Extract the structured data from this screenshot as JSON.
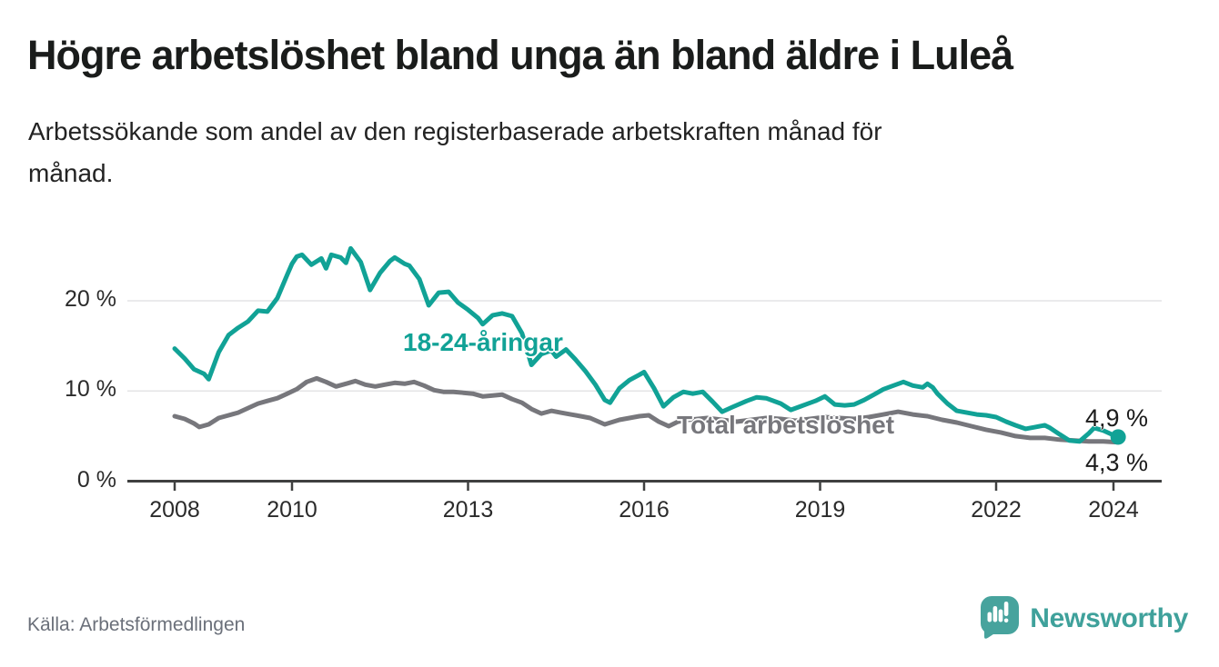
{
  "header": {
    "title": "Högre arbetslöshet bland unga än bland äldre i Luleå",
    "subtitle_lines": [
      "Arbetssökande som andel av den registerbaserade arbetskraften månad för",
      "månad."
    ]
  },
  "chart_data": {
    "type": "line",
    "title": "Högre arbetslöshet bland unga än bland äldre i Luleå",
    "unit": "%",
    "grid": "horizontal",
    "legend_position": "inline-labels",
    "ylim": [
      0,
      27
    ],
    "xlim": [
      2007.2,
      2024.85
    ],
    "y_ticks": [
      {
        "value": 0,
        "label": "0 %"
      },
      {
        "value": 10,
        "label": "10 %"
      },
      {
        "value": 20,
        "label": "20 %"
      }
    ],
    "x_ticks": [
      {
        "value": 2008,
        "label": "2008"
      },
      {
        "value": 2010,
        "label": "2010"
      },
      {
        "value": 2013,
        "label": "2013"
      },
      {
        "value": 2016,
        "label": "2016"
      },
      {
        "value": 2019,
        "label": "2019"
      },
      {
        "value": 2022,
        "label": "2022"
      },
      {
        "value": 2024,
        "label": "2024"
      }
    ],
    "series": [
      {
        "name": "18-24-åringar",
        "color": "#11a296",
        "end_label": "4,9 %",
        "end_value": 4.9,
        "end_dot": true,
        "points": [
          [
            2008,
            14.7
          ],
          [
            2008.17,
            13.6
          ],
          [
            2008.33,
            12.4
          ],
          [
            2008.5,
            11.9
          ],
          [
            2008.58,
            11.3
          ],
          [
            2008.75,
            14.3
          ],
          [
            2008.92,
            16.2
          ],
          [
            2009.08,
            17
          ],
          [
            2009.25,
            17.7
          ],
          [
            2009.42,
            18.9
          ],
          [
            2009.58,
            18.8
          ],
          [
            2009.75,
            20.3
          ],
          [
            2009.92,
            22.9
          ],
          [
            2010,
            24.1
          ],
          [
            2010.08,
            24.9
          ],
          [
            2010.17,
            25.1
          ],
          [
            2010.33,
            24
          ],
          [
            2010.5,
            24.7
          ],
          [
            2010.58,
            23.6
          ],
          [
            2010.67,
            25.1
          ],
          [
            2010.83,
            24.8
          ],
          [
            2010.92,
            24.2
          ],
          [
            2011,
            25.8
          ],
          [
            2011.17,
            24.3
          ],
          [
            2011.33,
            21.2
          ],
          [
            2011.5,
            23.1
          ],
          [
            2011.67,
            24.4
          ],
          [
            2011.75,
            24.8
          ],
          [
            2011.92,
            24.1
          ],
          [
            2012,
            23.9
          ],
          [
            2012.17,
            22.4
          ],
          [
            2012.33,
            19.5
          ],
          [
            2012.5,
            20.9
          ],
          [
            2012.67,
            21
          ],
          [
            2012.83,
            19.8
          ],
          [
            2013,
            19
          ],
          [
            2013.17,
            18.1
          ],
          [
            2013.25,
            17.4
          ],
          [
            2013.42,
            18.4
          ],
          [
            2013.58,
            18.6
          ],
          [
            2013.75,
            18.3
          ],
          [
            2013.92,
            16.4
          ],
          [
            2014.08,
            12.9
          ],
          [
            2014.25,
            14.1
          ],
          [
            2014.42,
            14.5
          ],
          [
            2014.5,
            13.8
          ],
          [
            2014.67,
            14.6
          ],
          [
            2014.83,
            13.5
          ],
          [
            2015,
            12.2
          ],
          [
            2015.17,
            10.7
          ],
          [
            2015.33,
            9
          ],
          [
            2015.42,
            8.7
          ],
          [
            2015.58,
            10.3
          ],
          [
            2015.75,
            11.2
          ],
          [
            2015.92,
            11.8
          ],
          [
            2016,
            12.1
          ],
          [
            2016.17,
            10.3
          ],
          [
            2016.33,
            8.3
          ],
          [
            2016.5,
            9.3
          ],
          [
            2016.67,
            9.9
          ],
          [
            2016.83,
            9.7
          ],
          [
            2017,
            9.9
          ],
          [
            2017.17,
            8.8
          ],
          [
            2017.33,
            7.7
          ],
          [
            2017.5,
            8.2
          ],
          [
            2017.75,
            8.9
          ],
          [
            2017.92,
            9.3
          ],
          [
            2018.08,
            9.2
          ],
          [
            2018.33,
            8.6
          ],
          [
            2018.5,
            7.9
          ],
          [
            2018.67,
            8.3
          ],
          [
            2018.92,
            8.9
          ],
          [
            2019.08,
            9.4
          ],
          [
            2019.25,
            8.5
          ],
          [
            2019.42,
            8.4
          ],
          [
            2019.58,
            8.5
          ],
          [
            2019.75,
            9
          ],
          [
            2019.92,
            9.6
          ],
          [
            2020.08,
            10.2
          ],
          [
            2020.25,
            10.6
          ],
          [
            2020.42,
            11
          ],
          [
            2020.58,
            10.6
          ],
          [
            2020.75,
            10.4
          ],
          [
            2020.83,
            10.8
          ],
          [
            2020.92,
            10.4
          ],
          [
            2021,
            9.7
          ],
          [
            2021.17,
            8.6
          ],
          [
            2021.33,
            7.8
          ],
          [
            2021.5,
            7.6
          ],
          [
            2021.67,
            7.4
          ],
          [
            2021.83,
            7.3
          ],
          [
            2022,
            7.1
          ],
          [
            2022.17,
            6.6
          ],
          [
            2022.33,
            6.2
          ],
          [
            2022.5,
            5.8
          ],
          [
            2022.67,
            6
          ],
          [
            2022.83,
            6.2
          ],
          [
            2022.92,
            5.9
          ],
          [
            2023.08,
            5.2
          ],
          [
            2023.25,
            4.5
          ],
          [
            2023.42,
            4.4
          ],
          [
            2023.58,
            5.3
          ],
          [
            2023.67,
            5.9
          ],
          [
            2023.83,
            5.6
          ],
          [
            2024,
            5.1
          ],
          [
            2024.08,
            4.9
          ]
        ]
      },
      {
        "name": "Total arbetslöshet",
        "color": "#77777c",
        "end_label": "4,3 %",
        "end_value": 4.3,
        "end_dot": false,
        "points": [
          [
            2008,
            7.2
          ],
          [
            2008.17,
            6.9
          ],
          [
            2008.33,
            6.4
          ],
          [
            2008.42,
            6
          ],
          [
            2008.58,
            6.3
          ],
          [
            2008.75,
            7
          ],
          [
            2008.92,
            7.3
          ],
          [
            2009.08,
            7.6
          ],
          [
            2009.25,
            8.1
          ],
          [
            2009.42,
            8.6
          ],
          [
            2009.58,
            8.9
          ],
          [
            2009.75,
            9.2
          ],
          [
            2009.92,
            9.7
          ],
          [
            2010.08,
            10.2
          ],
          [
            2010.25,
            11
          ],
          [
            2010.42,
            11.4
          ],
          [
            2010.58,
            11
          ],
          [
            2010.75,
            10.5
          ],
          [
            2010.92,
            10.8
          ],
          [
            2011.08,
            11.1
          ],
          [
            2011.25,
            10.7
          ],
          [
            2011.42,
            10.5
          ],
          [
            2011.58,
            10.7
          ],
          [
            2011.75,
            10.9
          ],
          [
            2011.92,
            10.8
          ],
          [
            2012.08,
            11
          ],
          [
            2012.25,
            10.6
          ],
          [
            2012.42,
            10.1
          ],
          [
            2012.58,
            9.9
          ],
          [
            2012.75,
            9.9
          ],
          [
            2012.92,
            9.8
          ],
          [
            2013.08,
            9.7
          ],
          [
            2013.25,
            9.4
          ],
          [
            2013.42,
            9.5
          ],
          [
            2013.58,
            9.6
          ],
          [
            2013.75,
            9.1
          ],
          [
            2013.92,
            8.7
          ],
          [
            2014.08,
            8
          ],
          [
            2014.25,
            7.5
          ],
          [
            2014.42,
            7.8
          ],
          [
            2014.58,
            7.6
          ],
          [
            2014.75,
            7.4
          ],
          [
            2014.92,
            7.2
          ],
          [
            2015.08,
            7
          ],
          [
            2015.33,
            6.3
          ],
          [
            2015.58,
            6.8
          ],
          [
            2015.75,
            7
          ],
          [
            2015.92,
            7.2
          ],
          [
            2016.08,
            7.3
          ],
          [
            2016.25,
            6.6
          ],
          [
            2016.42,
            6.1
          ],
          [
            2016.58,
            6.6
          ],
          [
            2016.75,
            6.8
          ],
          [
            2016.92,
            6.9
          ],
          [
            2017.08,
            7
          ],
          [
            2017.33,
            6.8
          ],
          [
            2017.58,
            6.6
          ],
          [
            2017.83,
            6.8
          ],
          [
            2018.08,
            7
          ],
          [
            2018.33,
            6.9
          ],
          [
            2018.58,
            6.7
          ],
          [
            2018.83,
            6.9
          ],
          [
            2019.08,
            7.1
          ],
          [
            2019.33,
            7
          ],
          [
            2019.58,
            6.9
          ],
          [
            2019.83,
            7.1
          ],
          [
            2020.08,
            7.4
          ],
          [
            2020.33,
            7.7
          ],
          [
            2020.58,
            7.4
          ],
          [
            2020.83,
            7.2
          ],
          [
            2021.08,
            6.8
          ],
          [
            2021.33,
            6.5
          ],
          [
            2021.58,
            6.1
          ],
          [
            2021.83,
            5.7
          ],
          [
            2022.08,
            5.4
          ],
          [
            2022.33,
            5
          ],
          [
            2022.58,
            4.8
          ],
          [
            2022.83,
            4.8
          ],
          [
            2023.08,
            4.6
          ],
          [
            2023.33,
            4.5
          ],
          [
            2023.58,
            4.4
          ],
          [
            2023.83,
            4.4
          ],
          [
            2024.08,
            4.3
          ]
        ]
      }
    ]
  },
  "footer": {
    "source": "Källa: Arbetsförmedlingen",
    "logo_text": "Newsworthy"
  },
  "colors": {
    "accent_teal": "#11a296",
    "line_gray": "#77777c",
    "axis": "#3f4040",
    "gridline": "#e4e4e6",
    "logo_teal": "#47a39d"
  }
}
